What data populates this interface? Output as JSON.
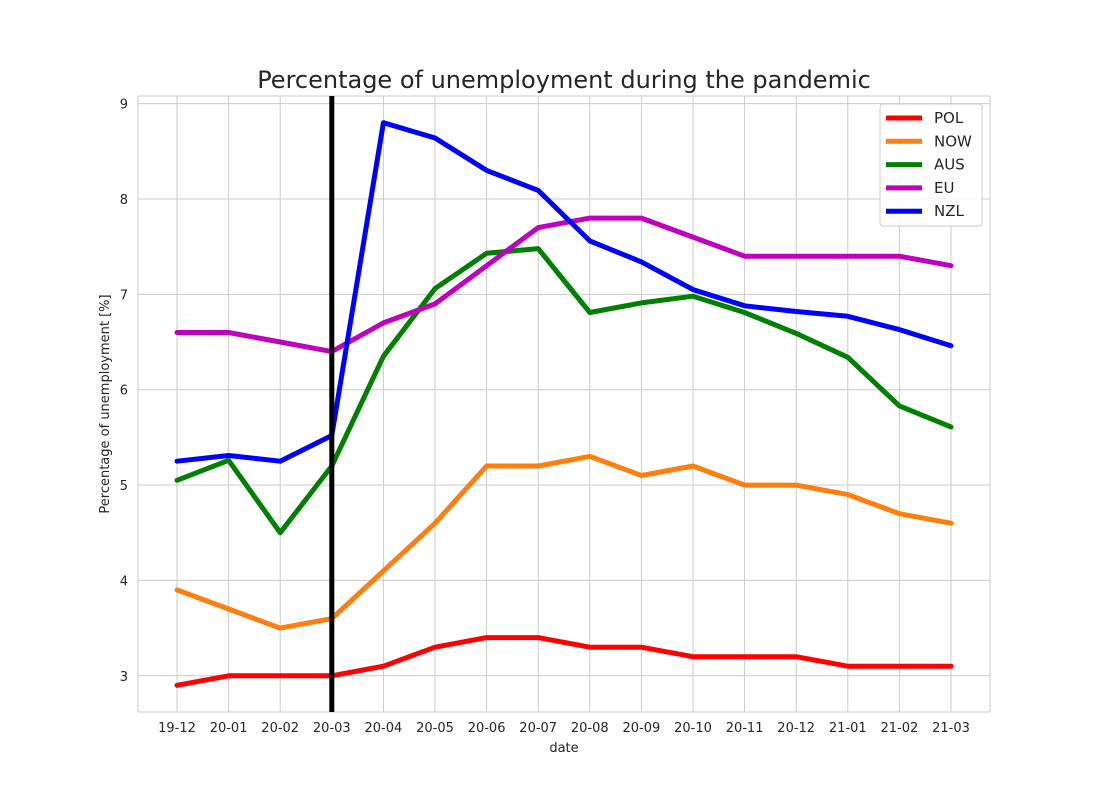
{
  "chart_data": {
    "type": "line",
    "title": "Percentage of unemployment during the pandemic",
    "xlabel": "date",
    "ylabel": "Percentage of unemployment [%]",
    "categories": [
      "19-12",
      "20-01",
      "20-02",
      "20-03",
      "20-04",
      "20-05",
      "20-06",
      "20-07",
      "20-08",
      "20-09",
      "20-10",
      "20-11",
      "20-12",
      "21-01",
      "21-02",
      "21-03"
    ],
    "yticks": [
      3,
      4,
      5,
      6,
      7,
      8,
      9
    ],
    "ylim": [
      2.62,
      9.08
    ],
    "grid": true,
    "legend_position": "top-right",
    "vertical_marker": {
      "category": "20-03",
      "color": "#000000"
    },
    "series": [
      {
        "name": "POL",
        "color": "#ff0000",
        "values": [
          2.9,
          3.0,
          3.0,
          3.0,
          3.1,
          3.3,
          3.4,
          3.4,
          3.3,
          3.3,
          3.2,
          3.2,
          3.2,
          3.1,
          3.1,
          3.1
        ]
      },
      {
        "name": "NOW",
        "color": "#ff7f0e",
        "values": [
          3.9,
          3.7,
          3.5,
          3.6,
          4.1,
          4.6,
          5.2,
          5.2,
          5.3,
          5.1,
          5.2,
          5.0,
          5.0,
          4.9,
          4.7,
          4.6
        ]
      },
      {
        "name": "AUS",
        "color": "#008000",
        "values": [
          5.05,
          5.26,
          4.5,
          5.2,
          6.35,
          7.06,
          7.43,
          7.48,
          6.81,
          6.91,
          6.98,
          6.81,
          6.59,
          6.34,
          5.83,
          5.61
        ]
      },
      {
        "name": "EU",
        "color": "#bf00bf",
        "values": [
          6.6,
          6.6,
          6.5,
          6.4,
          6.7,
          6.9,
          7.3,
          7.7,
          7.8,
          7.8,
          7.6,
          7.4,
          7.4,
          7.4,
          7.4,
          7.3
        ]
      },
      {
        "name": "NZL",
        "color": "#0000ff",
        "values": [
          5.25,
          5.31,
          5.25,
          5.52,
          8.8,
          8.64,
          8.3,
          8.09,
          7.56,
          7.34,
          7.05,
          6.88,
          6.82,
          6.77,
          6.63,
          6.46
        ]
      }
    ]
  }
}
